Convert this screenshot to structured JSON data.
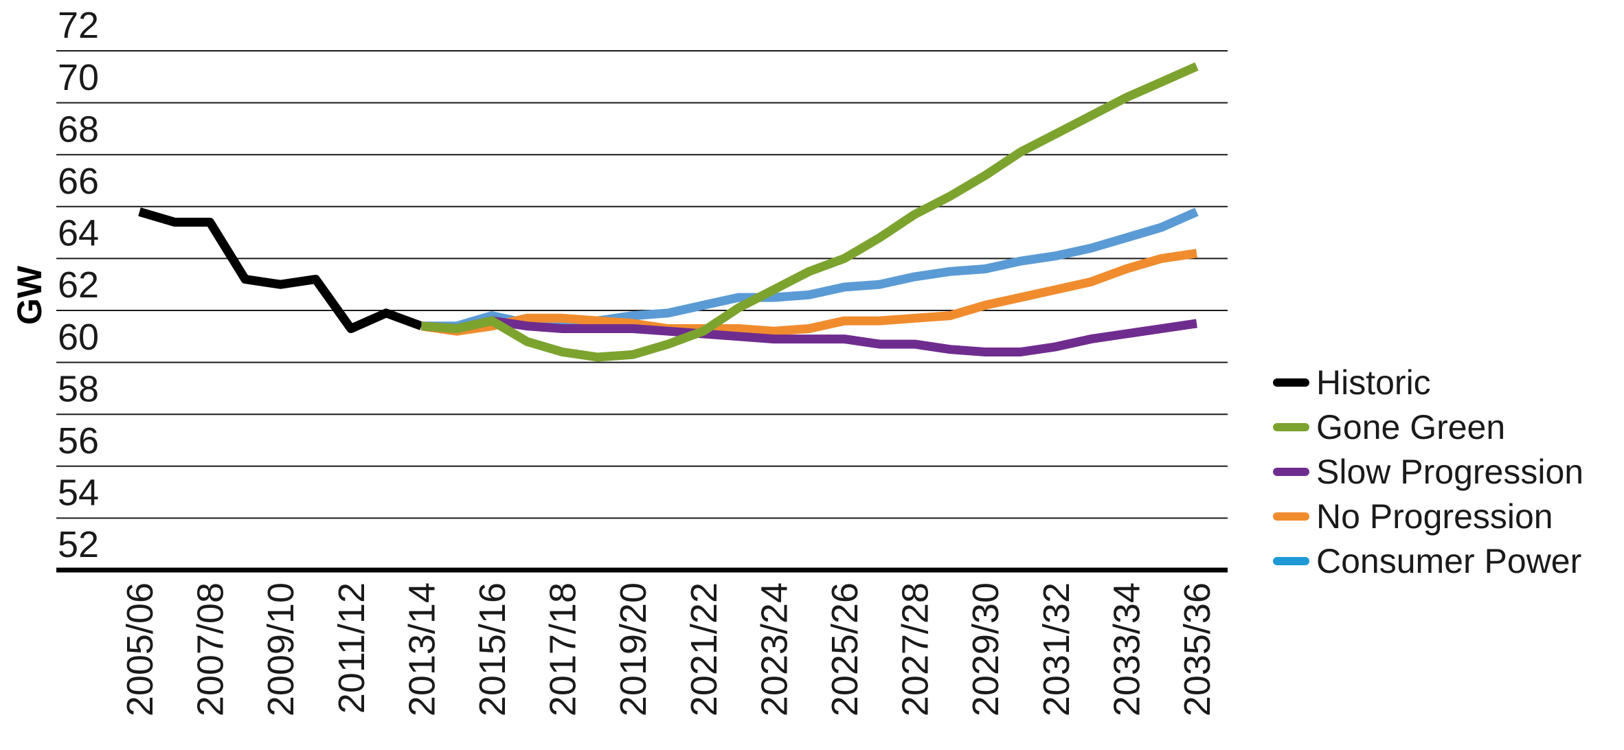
{
  "chart_data": {
    "type": "line",
    "ylabel": "GW",
    "xlabel": "",
    "ylim": [
      51,
      73
    ],
    "y_ticks": [
      52,
      54,
      56,
      58,
      60,
      62,
      64,
      66,
      68,
      70,
      72
    ],
    "grid": "horizontal",
    "legend_position": "right",
    "x": [
      "2005/06",
      "2006/07",
      "2007/08",
      "2008/09",
      "2009/10",
      "2010/11",
      "2011/12",
      "2012/13",
      "2013/14",
      "2014/15",
      "2015/16",
      "2016/17",
      "2017/18",
      "2018/19",
      "2019/20",
      "2020/21",
      "2021/22",
      "2022/23",
      "2023/24",
      "2024/25",
      "2025/26",
      "2026/27",
      "2027/28",
      "2028/29",
      "2029/30",
      "2030/31",
      "2031/32",
      "2032/33",
      "2033/34",
      "2034/35",
      "2035/36"
    ],
    "x_tick_labels": [
      "2005/06",
      "2007/08",
      "2009/10",
      "2011/12",
      "2013/14",
      "2015/16",
      "2017/18",
      "2019/20",
      "2021/22",
      "2023/24",
      "2025/26",
      "2027/28",
      "2029/30",
      "2031/32",
      "2033/34",
      "2035/36"
    ],
    "series": [
      {
        "name": "Historic",
        "color": "#000000",
        "values": [
          64.8,
          64.4,
          64.4,
          62.2,
          62.0,
          62.2,
          60.3,
          60.9,
          60.4,
          null,
          null,
          null,
          null,
          null,
          null,
          null,
          null,
          null,
          null,
          null,
          null,
          null,
          null,
          null,
          null,
          null,
          null,
          null,
          null,
          null,
          null
        ]
      },
      {
        "name": "Consumer Power",
        "color": "#5b9bd5",
        "values": [
          null,
          null,
          null,
          null,
          null,
          null,
          null,
          null,
          60.4,
          60.4,
          60.8,
          60.5,
          60.5,
          60.6,
          60.8,
          60.9,
          61.2,
          61.5,
          61.5,
          61.6,
          61.9,
          62.0,
          62.3,
          62.5,
          62.6,
          62.9,
          63.1,
          63.4,
          63.8,
          64.2,
          64.8
        ]
      },
      {
        "name": "No Progression",
        "color": "#f08c2e",
        "values": [
          null,
          null,
          null,
          null,
          null,
          null,
          null,
          null,
          60.4,
          60.2,
          60.4,
          60.7,
          60.7,
          60.6,
          60.5,
          60.3,
          60.3,
          60.3,
          60.2,
          60.3,
          60.6,
          60.6,
          60.7,
          60.8,
          61.2,
          61.5,
          61.8,
          62.1,
          62.6,
          63.0,
          63.2
        ]
      },
      {
        "name": "Slow Progression",
        "color": "#6f2c8f",
        "values": [
          null,
          null,
          null,
          null,
          null,
          null,
          null,
          null,
          60.4,
          60.3,
          60.6,
          60.4,
          60.3,
          60.3,
          60.3,
          60.2,
          60.1,
          60.0,
          59.9,
          59.9,
          59.9,
          59.7,
          59.7,
          59.5,
          59.4,
          59.4,
          59.6,
          59.9,
          60.1,
          60.3,
          60.5
        ]
      },
      {
        "name": "Gone Green",
        "color": "#7da32f",
        "values": [
          null,
          null,
          null,
          null,
          null,
          null,
          null,
          null,
          60.4,
          60.3,
          60.6,
          59.8,
          59.4,
          59.2,
          59.3,
          59.7,
          60.2,
          61.1,
          61.8,
          62.5,
          63.0,
          63.8,
          64.7,
          65.4,
          66.2,
          67.1,
          67.8,
          68.5,
          69.2,
          69.8,
          70.4
        ]
      }
    ],
    "legend": [
      {
        "name": "Historic",
        "color": "#000000"
      },
      {
        "name": "Gone Green",
        "color": "#7da32f"
      },
      {
        "name": "Slow Progression",
        "color": "#6f2c8f"
      },
      {
        "name": "No Progression",
        "color": "#f08c2e"
      },
      {
        "name": "Consumer Power",
        "color": "#1e9ad6"
      }
    ]
  }
}
